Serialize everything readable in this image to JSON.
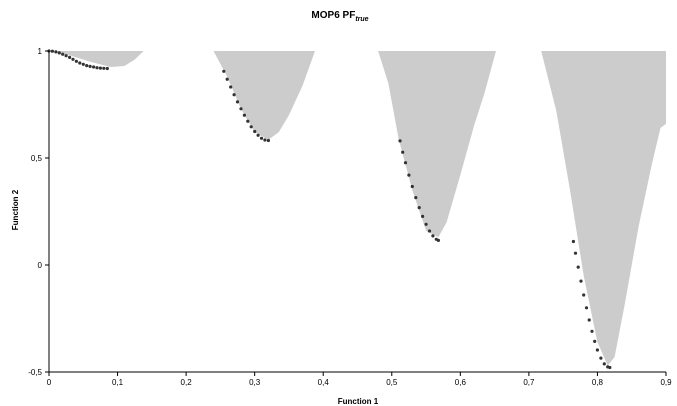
{
  "chart_data": {
    "type": "scatter",
    "title": "MOP6 PF",
    "title_subscript": "true",
    "xlabel": "Function 1",
    "ylabel": "Function 2",
    "xlim": [
      0,
      0.9
    ],
    "ylim": [
      -0.5,
      1
    ],
    "x_ticks": [
      0,
      0.1,
      0.2,
      0.3,
      0.4,
      0.5,
      0.6,
      0.7,
      0.8,
      0.9
    ],
    "x_tick_labels": [
      "0",
      "0,1",
      "0,2",
      "0,3",
      "0,4",
      "0,5",
      "0,6",
      "0,7",
      "0,8",
      "0,9"
    ],
    "y_ticks": [
      -0.5,
      0,
      0.5,
      1
    ],
    "y_tick_labels": [
      "-0,5",
      "0",
      "0,5",
      "1"
    ],
    "grid": false,
    "colors": {
      "feasible_region": "#cccccc",
      "pareto_front": "#333333",
      "axis": "#000000"
    },
    "feasible_region": [
      [
        [
          0,
          1
        ],
        [
          0.03,
          0.98
        ],
        [
          0.06,
          0.95
        ],
        [
          0.09,
          0.925
        ],
        [
          0.11,
          0.93
        ],
        [
          0.125,
          0.96
        ],
        [
          0.138,
          1
        ]
      ],
      [
        [
          0.24,
          1
        ],
        [
          0.26,
          0.88
        ],
        [
          0.28,
          0.73
        ],
        [
          0.3,
          0.62
        ],
        [
          0.32,
          0.585
        ],
        [
          0.335,
          0.62
        ],
        [
          0.35,
          0.7
        ],
        [
          0.37,
          0.84
        ],
        [
          0.388,
          1
        ]
      ],
      [
        [
          0.48,
          1
        ],
        [
          0.495,
          0.85
        ],
        [
          0.51,
          0.59
        ],
        [
          0.53,
          0.35
        ],
        [
          0.55,
          0.16
        ],
        [
          0.568,
          0.13
        ],
        [
          0.58,
          0.2
        ],
        [
          0.6,
          0.42
        ],
        [
          0.62,
          0.65
        ],
        [
          0.635,
          0.8
        ],
        [
          0.652,
          1
        ]
      ],
      [
        [
          0.718,
          1
        ],
        [
          0.74,
          0.72
        ],
        [
          0.76,
          0.35
        ],
        [
          0.78,
          -0.05
        ],
        [
          0.8,
          -0.36
        ],
        [
          0.815,
          -0.47
        ],
        [
          0.825,
          -0.43
        ],
        [
          0.84,
          -0.18
        ],
        [
          0.86,
          0.18
        ],
        [
          0.88,
          0.48
        ],
        [
          0.892,
          0.64
        ],
        [
          0.9,
          0.66
        ],
        [
          0.9,
          1
        ]
      ]
    ],
    "series": [
      {
        "points": [
          [
            0,
            1
          ],
          [
            0.005,
            0.999
          ],
          [
            0.01,
            0.996
          ],
          [
            0.015,
            0.991
          ],
          [
            0.02,
            0.985
          ],
          [
            0.025,
            0.978
          ],
          [
            0.03,
            0.97
          ],
          [
            0.035,
            0.961
          ],
          [
            0.04,
            0.952
          ],
          [
            0.045,
            0.944
          ],
          [
            0.05,
            0.938
          ],
          [
            0.055,
            0.932
          ],
          [
            0.06,
            0.928
          ],
          [
            0.065,
            0.925
          ],
          [
            0.07,
            0.922
          ],
          [
            0.075,
            0.92
          ],
          [
            0.08,
            0.919
          ],
          [
            0.085,
            0.918
          ],
          [
            0.255,
            0.905
          ],
          [
            0.26,
            0.868
          ],
          [
            0.265,
            0.832
          ],
          [
            0.27,
            0.796
          ],
          [
            0.275,
            0.762
          ],
          [
            0.28,
            0.73
          ],
          [
            0.285,
            0.7
          ],
          [
            0.29,
            0.672
          ],
          [
            0.295,
            0.646
          ],
          [
            0.3,
            0.624
          ],
          [
            0.305,
            0.606
          ],
          [
            0.31,
            0.592
          ],
          [
            0.315,
            0.584
          ],
          [
            0.32,
            0.582
          ],
          [
            0.512,
            0.58
          ],
          [
            0.516,
            0.527
          ],
          [
            0.52,
            0.478
          ],
          [
            0.525,
            0.42
          ],
          [
            0.53,
            0.367
          ],
          [
            0.535,
            0.315
          ],
          [
            0.54,
            0.268
          ],
          [
            0.545,
            0.227
          ],
          [
            0.55,
            0.19
          ],
          [
            0.555,
            0.159
          ],
          [
            0.56,
            0.136
          ],
          [
            0.565,
            0.12
          ],
          [
            0.568,
            0.115
          ],
          [
            0.765,
            0.11
          ],
          [
            0.768,
            0.055
          ],
          [
            0.772,
            -0.01
          ],
          [
            0.776,
            -0.075
          ],
          [
            0.78,
            -0.14
          ],
          [
            0.784,
            -0.2
          ],
          [
            0.788,
            -0.257
          ],
          [
            0.792,
            -0.31
          ],
          [
            0.796,
            -0.357
          ],
          [
            0.8,
            -0.397
          ],
          [
            0.805,
            -0.435
          ],
          [
            0.81,
            -0.462
          ],
          [
            0.815,
            -0.476
          ],
          [
            0.818,
            -0.479
          ]
        ]
      }
    ]
  }
}
